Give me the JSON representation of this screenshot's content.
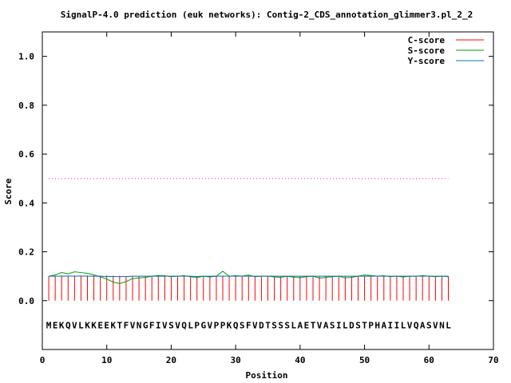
{
  "chart_data": {
    "type": "line",
    "title": "SignalP-4.0 prediction (euk networks): Contig-2_CDS_annotation_glimmer3.pl_2_2",
    "xlabel": "Position",
    "ylabel": "Score",
    "xlim": [
      0,
      70
    ],
    "ylim": [
      -0.2,
      1.1
    ],
    "xticks": [
      "0",
      "10",
      "20",
      "30",
      "40",
      "50",
      "60",
      "70"
    ],
    "yticks": [
      "0.0",
      "0.2",
      "0.4",
      "0.6",
      "0.8",
      "1.0"
    ],
    "grid": false,
    "legend_position": "top-right",
    "threshold": 0.5,
    "threshold_color": "#ff00ff",
    "sequence": "MEKQVLKKEEKTFVNGFIVSVQLPGVPPKQSFVDTSSSLAETVASILDSTPHAIILVQASVNL",
    "series": [
      {
        "name": "C-score",
        "color": "#ff0000",
        "style": "impulse",
        "values": [
          0.1,
          0.102,
          0.103,
          0.102,
          0.103,
          0.102,
          0.103,
          0.102,
          0.102,
          0.103,
          0.102,
          0.102,
          0.1,
          0.101,
          0.1,
          0.101,
          0.102,
          0.101,
          0.1,
          0.101,
          0.101,
          0.1,
          0.1,
          0.099,
          0.1,
          0.099,
          0.1,
          0.101,
          0.1,
          0.1,
          0.101,
          0.1,
          0.1,
          0.1,
          0.099,
          0.1,
          0.1,
          0.1,
          0.099,
          0.1,
          0.1,
          0.1,
          0.1,
          0.099,
          0.1,
          0.099,
          0.1,
          0.1,
          0.1,
          0.1,
          0.1,
          0.1,
          0.1,
          0.099,
          0.1,
          0.1,
          0.1,
          0.1,
          0.1,
          0.1,
          0.1,
          0.1,
          0.1
        ]
      },
      {
        "name": "S-score",
        "color": "#00a000",
        "style": "line",
        "values": [
          0.1,
          0.105,
          0.115,
          0.11,
          0.118,
          0.115,
          0.112,
          0.105,
          0.098,
          0.088,
          0.076,
          0.07,
          0.078,
          0.09,
          0.093,
          0.095,
          0.1,
          0.103,
          0.102,
          0.098,
          0.1,
          0.102,
          0.098,
          0.094,
          0.1,
          0.097,
          0.1,
          0.12,
          0.1,
          0.102,
          0.1,
          0.105,
          0.098,
          0.1,
          0.1,
          0.097,
          0.095,
          0.1,
          0.096,
          0.094,
          0.098,
          0.1,
          0.092,
          0.095,
          0.098,
          0.1,
          0.093,
          0.095,
          0.1,
          0.105,
          0.103,
          0.1,
          0.102,
          0.098,
          0.1,
          0.097,
          0.1,
          0.1,
          0.102,
          0.1,
          0.098,
          0.1,
          0.098
        ]
      },
      {
        "name": "Y-score",
        "color": "#0070c0",
        "style": "line",
        "values": [
          0.1,
          0.1,
          0.1,
          0.101,
          0.1,
          0.101,
          0.1,
          0.1,
          0.1,
          0.099,
          0.099,
          0.098,
          0.099,
          0.1,
          0.1,
          0.1,
          0.1,
          0.1,
          0.1,
          0.1,
          0.1,
          0.1,
          0.1,
          0.099,
          0.1,
          0.1,
          0.1,
          0.1,
          0.1,
          0.1,
          0.1,
          0.1,
          0.1,
          0.1,
          0.1,
          0.1,
          0.1,
          0.1,
          0.1,
          0.1,
          0.1,
          0.1,
          0.1,
          0.1,
          0.1,
          0.1,
          0.1,
          0.1,
          0.1,
          0.1,
          0.1,
          0.1,
          0.1,
          0.1,
          0.1,
          0.1,
          0.1,
          0.1,
          0.1,
          0.1,
          0.1,
          0.1,
          0.1
        ]
      }
    ]
  }
}
